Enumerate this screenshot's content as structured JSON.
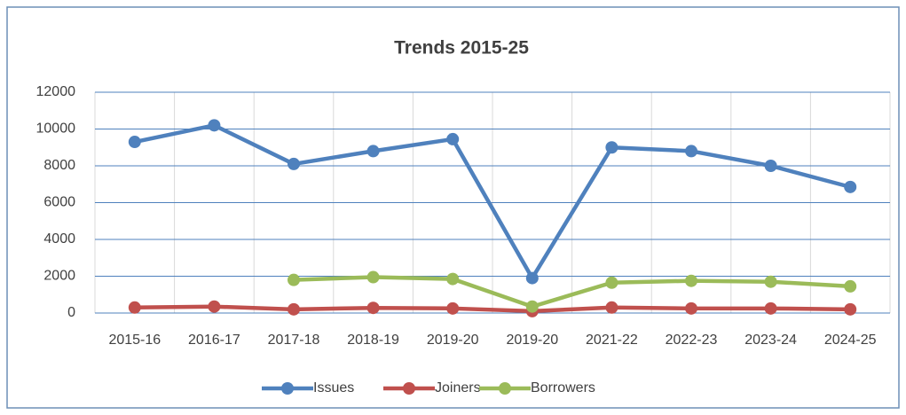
{
  "chart_data": {
    "type": "line",
    "title": "Trends 2015-25",
    "categories": [
      "2015-16",
      "2016-17",
      "2017-18",
      "2018-19",
      "2019-20",
      "2019-20",
      "2021-22",
      "2022-23",
      "2023-24",
      "2024-25"
    ],
    "series": [
      {
        "name": "Issues",
        "color": "#4f81bd",
        "values": [
          9300,
          10200,
          8100,
          8800,
          9450,
          1900,
          9000,
          8800,
          8000,
          6850
        ]
      },
      {
        "name": "Joiners",
        "color": "#c0504d",
        "values": [
          300,
          350,
          200,
          280,
          250,
          100,
          300,
          250,
          250,
          200
        ]
      },
      {
        "name": "Borrowers",
        "color": "#9bbb59",
        "values": [
          null,
          null,
          1800,
          1950,
          1850,
          350,
          1650,
          1750,
          1700,
          1450
        ]
      }
    ],
    "ylim": [
      0,
      12000
    ],
    "yticks": [
      0,
      2000,
      4000,
      6000,
      8000,
      10000,
      12000
    ],
    "grid": true,
    "legend": "bottom"
  }
}
